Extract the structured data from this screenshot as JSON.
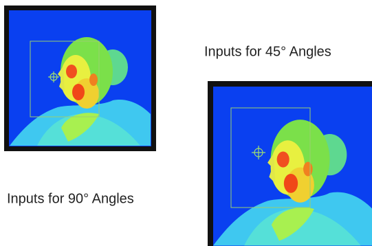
{
  "labels": {
    "angle_45": "Inputs for 45° Angles",
    "angle_90": "Inputs for 90° Angles"
  }
}
